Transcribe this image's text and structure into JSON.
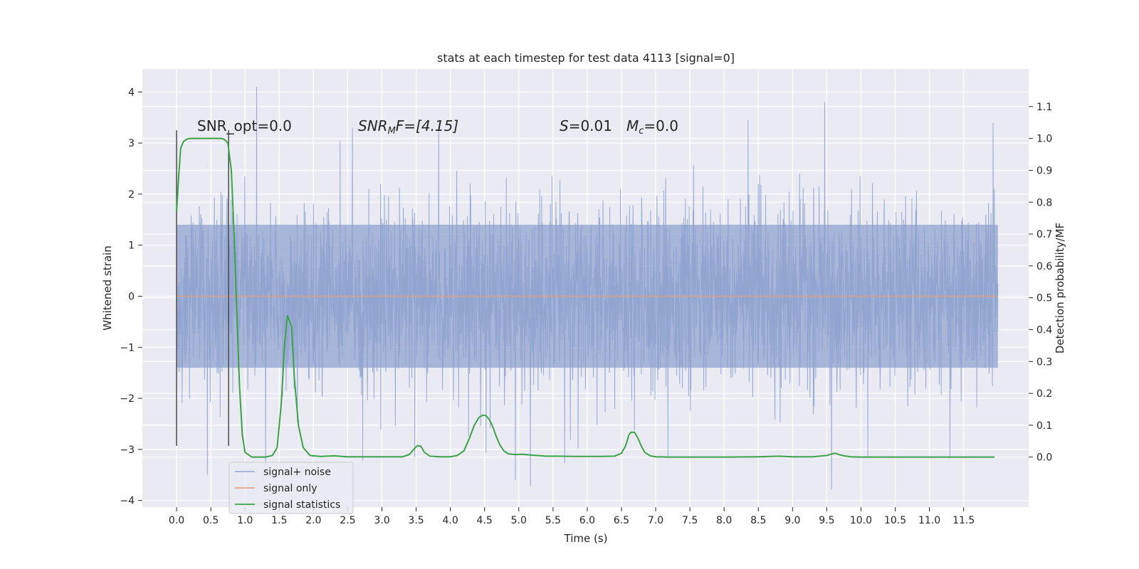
{
  "chart_data": {
    "type": "line",
    "title": "stats at each timestep for test data 4113 [signal=0]",
    "xlabel": "Time (s)",
    "ylabel": "Whitened strain",
    "y2label": "Detection probability/MF",
    "xlim": [
      -0.5,
      12.45
    ],
    "ylim": [
      -4.13,
      4.45
    ],
    "y2lim": [
      -0.157,
      1.218
    ],
    "x_ticks": [
      0.0,
      0.5,
      1.0,
      1.5,
      2.0,
      2.5,
      3.0,
      3.5,
      4.0,
      4.5,
      5.0,
      5.5,
      6.0,
      6.5,
      7.0,
      7.5,
      8.0,
      8.5,
      9.0,
      9.5,
      10.0,
      10.5,
      11.0,
      11.5
    ],
    "x_tick_labels": [
      "0.0",
      "0.5",
      "1.0",
      "1.5",
      "2.0",
      "2.5",
      "3.0",
      "3.5",
      "4.0",
      "4.5",
      "5.0",
      "5.5",
      "6.0",
      "6.5",
      "7.0",
      "7.5",
      "8.0",
      "8.5",
      "9.0",
      "9.5",
      "10.0",
      "10.5",
      "11.0",
      "11.5"
    ],
    "y_ticks": [
      -4,
      -3,
      -2,
      -1,
      0,
      1,
      2,
      3,
      4
    ],
    "y_tick_labels": [
      "−4",
      "−3",
      "−2",
      "−1",
      "0",
      "1",
      "2",
      "3",
      "4"
    ],
    "y2_ticks": [
      0.0,
      0.1,
      0.2,
      0.3,
      0.4,
      0.5,
      0.6,
      0.7,
      0.8,
      0.9,
      1.0,
      1.1
    ],
    "y2_tick_labels": [
      "0.0",
      "0.1",
      "0.2",
      "0.3",
      "0.4",
      "0.5",
      "0.6",
      "0.7",
      "0.8",
      "0.9",
      "1.0",
      "1.1"
    ],
    "grid": true,
    "legend_position": "lower-left",
    "annotations": {
      "snr_opt": "SNR_opt=0.0",
      "snr_mf_main": "SNR",
      "snr_mf_sub": "M",
      "snr_mf_rest": "F=[4.15]",
      "s_main": "S",
      "s_rest": "=0.01",
      "mc_main": "M",
      "mc_sub": "c",
      "mc_rest": "=0.0"
    },
    "vertical_lines": [
      {
        "x": 0.0,
        "y_range": [
          -2.93,
          3.25
        ]
      },
      {
        "x": 0.76,
        "y_range": [
          -2.93,
          3.25
        ]
      }
    ],
    "series": [
      {
        "name": "signal+ noise",
        "color": "#8fa3cf",
        "axis": "left",
        "kind": "noise",
        "t_range": [
          0.0,
          12.0
        ],
        "core_amplitude": 1.4,
        "notable_peaks": [
          {
            "x": 1.17,
            "y": 4.1
          },
          {
            "x": 9.47,
            "y": 3.8
          },
          {
            "x": 11.93,
            "y": 3.4
          },
          {
            "x": 8.35,
            "y": 3.45
          },
          {
            "x": 3.83,
            "y": 3.3
          },
          {
            "x": 2.57,
            "y": 3.3
          },
          {
            "x": 5.17,
            "y": -3.72
          },
          {
            "x": 4.95,
            "y": -3.6
          },
          {
            "x": 9.57,
            "y": -3.78
          },
          {
            "x": 0.45,
            "y": -3.5
          },
          {
            "x": 1.3,
            "y": -3.4
          },
          {
            "x": 2.72,
            "y": -3.22
          },
          {
            "x": 3.48,
            "y": -3.15
          },
          {
            "x": 7.18,
            "y": -3.15
          },
          {
            "x": 11.3,
            "y": -3.18
          },
          {
            "x": 10.1,
            "y": -3.15
          },
          {
            "x": 5.67,
            "y": -3.27
          }
        ]
      },
      {
        "name": "signal only",
        "color": "#e29d82",
        "axis": "left",
        "x": [
          0.0,
          12.0
        ],
        "y": [
          0.0,
          0.0
        ]
      },
      {
        "name": "signal statistics",
        "color": "#3fa04a",
        "axis": "right",
        "x": [
          0.0,
          0.03,
          0.06,
          0.1,
          0.15,
          0.2,
          0.3,
          0.4,
          0.5,
          0.6,
          0.65,
          0.7,
          0.75,
          0.8,
          0.84,
          0.88,
          0.92,
          0.96,
          1.0,
          1.1,
          1.3,
          1.4,
          1.47,
          1.53,
          1.58,
          1.62,
          1.68,
          1.72,
          1.78,
          1.85,
          1.95,
          2.1,
          2.3,
          2.5,
          2.8,
          3.1,
          3.3,
          3.4,
          3.48,
          3.52,
          3.57,
          3.62,
          3.7,
          3.85,
          4.0,
          4.1,
          4.2,
          4.28,
          4.35,
          4.42,
          4.48,
          4.52,
          4.57,
          4.62,
          4.67,
          4.72,
          4.78,
          4.85,
          4.95,
          5.05,
          5.2,
          5.4,
          5.6,
          5.8,
          6.0,
          6.2,
          6.4,
          6.5,
          6.56,
          6.61,
          6.64,
          6.69,
          6.74,
          6.79,
          6.84,
          6.92,
          7.0,
          7.2,
          7.5,
          8.0,
          8.5,
          8.8,
          9.0,
          9.3,
          9.5,
          9.57,
          9.62,
          9.68,
          9.75,
          9.85,
          10.0,
          10.5,
          11.0,
          11.5,
          11.95
        ],
        "y": [
          0.77,
          0.88,
          0.97,
          0.99,
          0.998,
          1.0,
          1.0,
          1.0,
          1.0,
          1.0,
          1.0,
          0.997,
          0.985,
          0.9,
          0.7,
          0.45,
          0.22,
          0.07,
          0.015,
          0.0,
          0.0,
          0.005,
          0.03,
          0.17,
          0.36,
          0.445,
          0.41,
          0.25,
          0.1,
          0.03,
          0.005,
          0.002,
          0.004,
          0.001,
          0.001,
          0.001,
          0.001,
          0.008,
          0.028,
          0.036,
          0.034,
          0.015,
          0.003,
          0.001,
          0.001,
          0.005,
          0.02,
          0.06,
          0.1,
          0.125,
          0.132,
          0.13,
          0.118,
          0.095,
          0.065,
          0.04,
          0.02,
          0.01,
          0.008,
          0.009,
          0.006,
          0.003,
          0.003,
          0.002,
          0.002,
          0.002,
          0.003,
          0.012,
          0.035,
          0.07,
          0.078,
          0.078,
          0.06,
          0.035,
          0.015,
          0.004,
          0.001,
          0.0,
          0.0,
          0.0,
          0.001,
          0.003,
          0.001,
          0.001,
          0.005,
          0.01,
          0.012,
          0.008,
          0.004,
          0.001,
          0.0,
          0.0,
          0.0,
          0.0,
          0.0
        ]
      }
    ]
  }
}
